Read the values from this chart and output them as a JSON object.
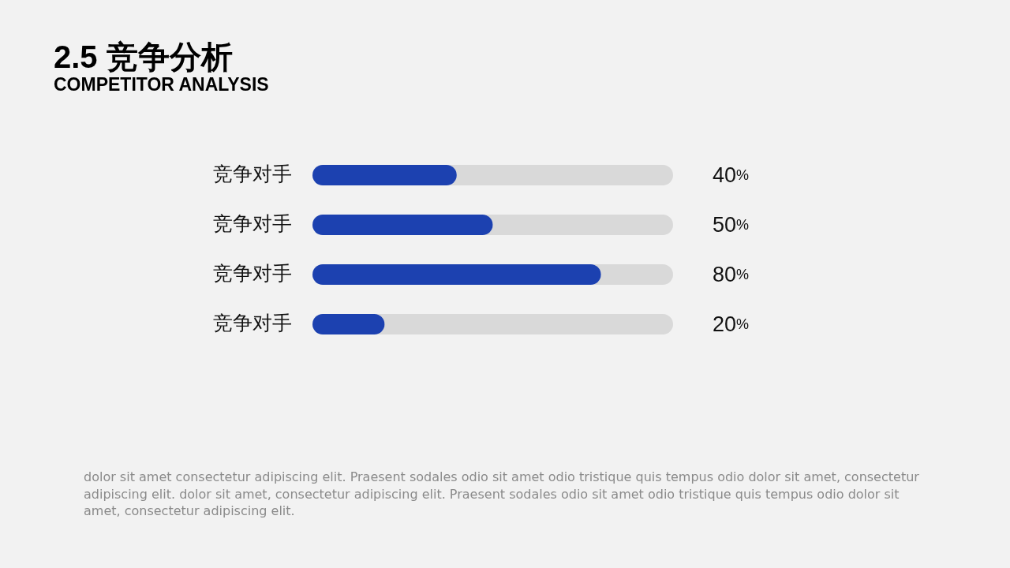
{
  "chart_data": {
    "type": "bar",
    "orientation": "horizontal",
    "title": "2.5 竞争分析",
    "subtitle": "COMPETITOR ANALYSIS",
    "categories": [
      "竞争对手",
      "竞争对手",
      "竞争对手",
      "竞争对手"
    ],
    "values": [
      40,
      50,
      80,
      20
    ],
    "color": "#1c41b0",
    "value_labels": [
      "40%",
      "50%",
      "80%",
      "20%"
    ],
    "xlim": [
      0,
      100
    ],
    "tick_labels": "y",
    "annotations": [
      "dolor sit amet consectetur adipiscing elit. Praesent sodales odio sit amet odio tristique quis tempus odio dolor sit amet, consectetur adipiscing elit. dolor sit amet, consectetur adipiscing elit. Praesent sodales odio sit amet odio tristique quis tempus odio dolor sit amet, consectetur adipiscing elit."
    ]
  }
}
